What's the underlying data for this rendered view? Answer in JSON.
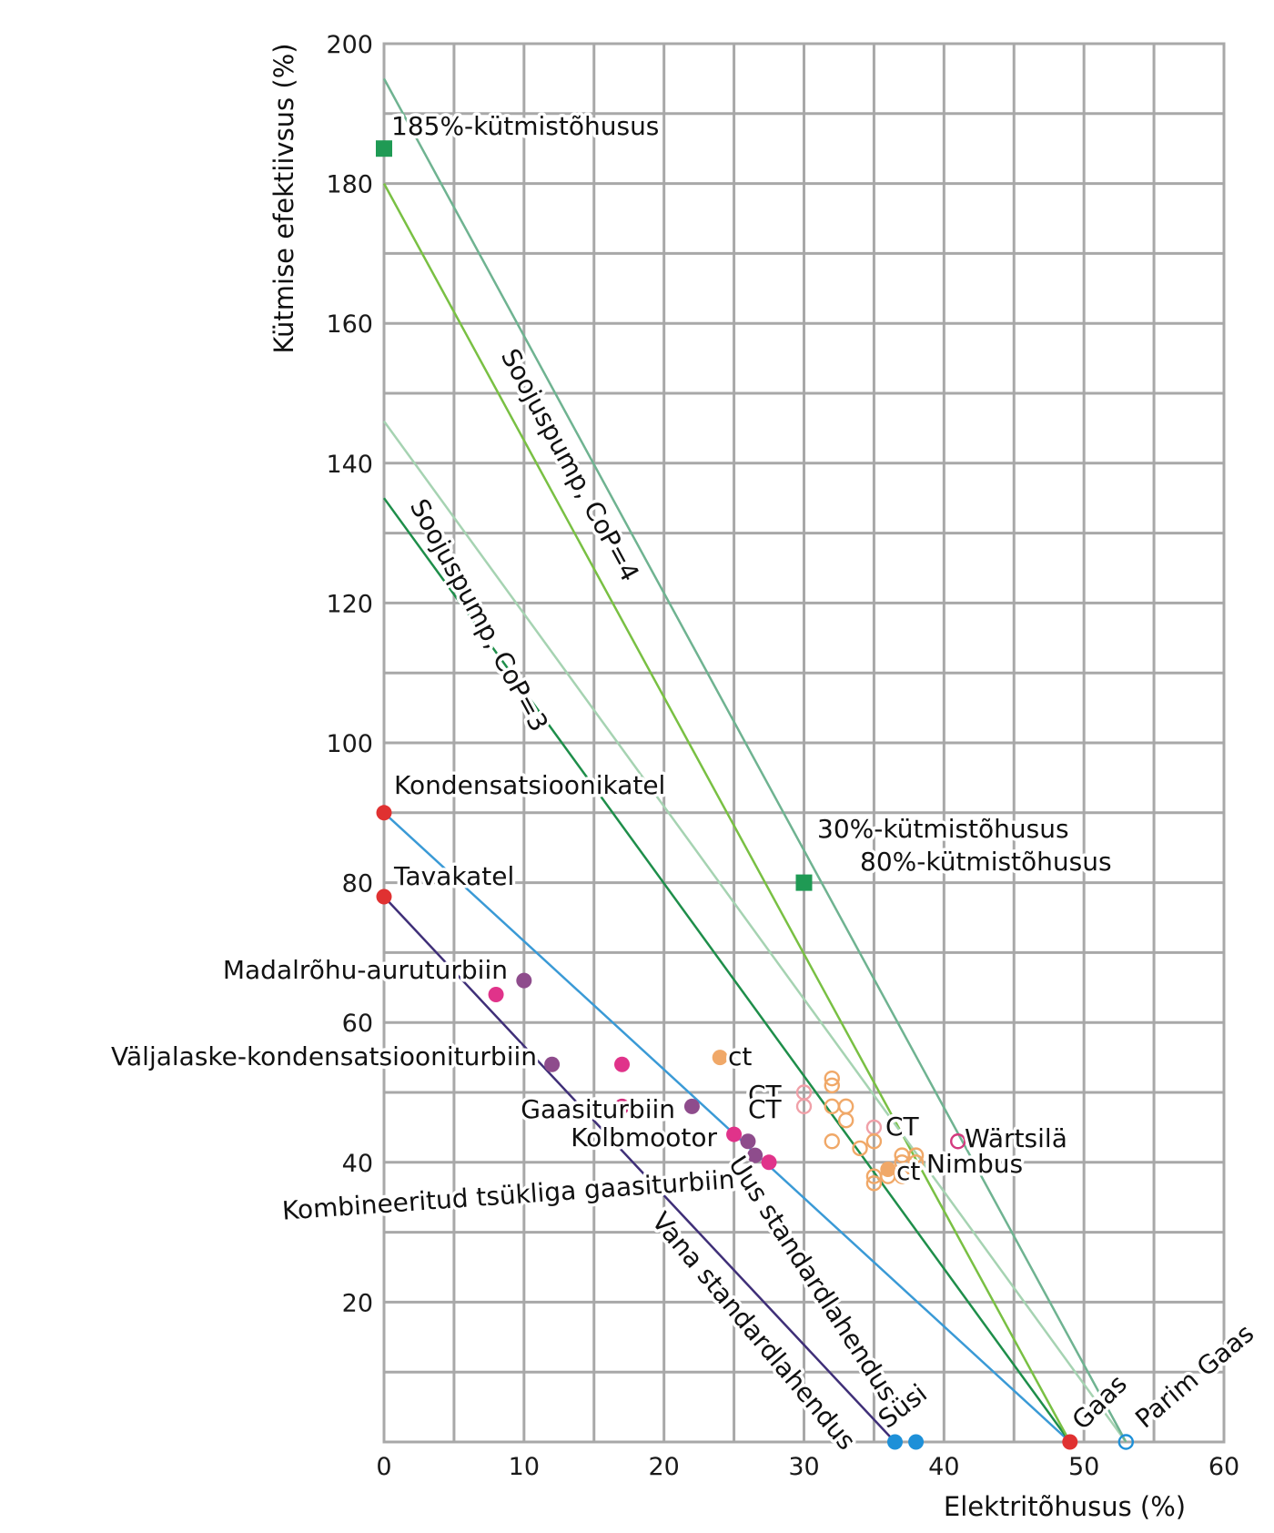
{
  "chart_data": {
    "type": "scatter",
    "title": "",
    "xlabel": "Elektritõhusus (%)",
    "ylabel": "Kütmise efektiivsus (%)",
    "xlim": [
      0,
      60
    ],
    "ylim": [
      0,
      200
    ],
    "x_ticks": [
      0,
      10,
      20,
      30,
      40,
      50,
      60
    ],
    "y_ticks": [
      20,
      40,
      60,
      80,
      100,
      120,
      140,
      160,
      180,
      200
    ],
    "x_grid_step": 5,
    "y_grid_step": 10,
    "grid": true,
    "lines": [
      {
        "id": "vana",
        "x1": 0,
        "y1": 78,
        "x2": 36.5,
        "y2": 0,
        "color": "#3f2f78",
        "label": "Vana standardlahendus"
      },
      {
        "id": "uus",
        "x1": 0,
        "y1": 90,
        "x2": 49,
        "y2": 0,
        "color": "#3a9ad6",
        "label": "Uus standardlahendus"
      },
      {
        "id": "cop3",
        "x1": 0,
        "y1": 135,
        "x2": 49,
        "y2": 0,
        "color": "#1e8e4a",
        "label": "Soojuspump, CoP=3"
      },
      {
        "id": "cop4",
        "x1": 0,
        "y1": 180,
        "x2": 49,
        "y2": 0,
        "color": "#79c043",
        "label": "Soojuspump, CoP=4"
      },
      {
        "id": "parim-a",
        "x1": 0,
        "y1": 146,
        "x2": 53,
        "y2": 0,
        "color": "#a6d3b2",
        "label": ""
      },
      {
        "id": "parim-b",
        "x1": 0,
        "y1": 195,
        "x2": 53,
        "y2": 0,
        "color": "#6fb391",
        "label": ""
      }
    ],
    "points": [
      {
        "x": 0,
        "y": 185,
        "shape": "square",
        "color": "#1f9a54",
        "filled": true,
        "label": "185%-kütmistõhusus"
      },
      {
        "x": 30,
        "y": 80,
        "shape": "square",
        "color": "#1f9a54",
        "filled": true,
        "label": ""
      },
      {
        "x": 0,
        "y": 90,
        "shape": "circle",
        "color": "#e03131",
        "filled": true,
        "label": "Kondensatsioonikatel"
      },
      {
        "x": 0,
        "y": 78,
        "shape": "circle",
        "color": "#e03131",
        "filled": true,
        "label": "Tavakatel"
      },
      {
        "x": 49,
        "y": 0,
        "shape": "circle",
        "color": "#e03131",
        "filled": true,
        "label": "Gaas"
      },
      {
        "x": 36.5,
        "y": 0,
        "shape": "circle",
        "color": "#1e90d8",
        "filled": true,
        "label": ""
      },
      {
        "x": 38,
        "y": 0,
        "shape": "circle",
        "color": "#1e90d8",
        "filled": true,
        "label": "Süsi"
      },
      {
        "x": 53,
        "y": 0,
        "shape": "circle",
        "color": "#1e90d8",
        "filled": false,
        "label": "Parim Gaas"
      },
      {
        "x": 10,
        "y": 66,
        "shape": "circle",
        "color": "#8e4c8c",
        "filled": true,
        "label": ""
      },
      {
        "x": 8,
        "y": 64,
        "shape": "circle",
        "color": "#e0338a",
        "filled": true,
        "label": ""
      },
      {
        "x": 12,
        "y": 54,
        "shape": "circle",
        "color": "#8e4c8c",
        "filled": true,
        "label": ""
      },
      {
        "x": 17,
        "y": 54,
        "shape": "circle",
        "color": "#e0338a",
        "filled": true,
        "label": ""
      },
      {
        "x": 17,
        "y": 48,
        "shape": "circle",
        "color": "#d02b7c",
        "filled": true,
        "label": ""
      },
      {
        "x": 22,
        "y": 48,
        "shape": "circle",
        "color": "#8e4c8c",
        "filled": true,
        "label": ""
      },
      {
        "x": 25,
        "y": 44,
        "shape": "circle",
        "color": "#e0338a",
        "filled": true,
        "label": ""
      },
      {
        "x": 26,
        "y": 43,
        "shape": "circle",
        "color": "#8e4c8c",
        "filled": true,
        "label": ""
      },
      {
        "x": 26.5,
        "y": 41,
        "shape": "circle",
        "color": "#8e4c8c",
        "filled": true,
        "label": ""
      },
      {
        "x": 27.5,
        "y": 40,
        "shape": "circle",
        "color": "#e0338a",
        "filled": true,
        "label": ""
      },
      {
        "x": 24,
        "y": 55,
        "shape": "circle",
        "color": "#f0a868",
        "filled": true,
        "label": "ct"
      },
      {
        "x": 30,
        "y": 50,
        "shape": "circle",
        "color": "#f0a0a8",
        "filled": false,
        "label": ""
      },
      {
        "x": 30,
        "y": 48,
        "shape": "circle",
        "color": "#f0a0a8",
        "filled": false,
        "label": ""
      },
      {
        "x": 32,
        "y": 52,
        "shape": "circle",
        "color": "#f0a868",
        "filled": false,
        "label": ""
      },
      {
        "x": 32,
        "y": 51,
        "shape": "circle",
        "color": "#f0a868",
        "filled": false,
        "label": ""
      },
      {
        "x": 32,
        "y": 48,
        "shape": "circle",
        "color": "#f0a868",
        "filled": false,
        "label": ""
      },
      {
        "x": 33,
        "y": 48,
        "shape": "circle",
        "color": "#f0a868",
        "filled": false,
        "label": ""
      },
      {
        "x": 33,
        "y": 46,
        "shape": "circle",
        "color": "#f0a868",
        "filled": false,
        "label": ""
      },
      {
        "x": 32,
        "y": 43,
        "shape": "circle",
        "color": "#f0a868",
        "filled": false,
        "label": ""
      },
      {
        "x": 34,
        "y": 42,
        "shape": "circle",
        "color": "#f0a868",
        "filled": false,
        "label": ""
      },
      {
        "x": 35,
        "y": 45,
        "shape": "circle",
        "color": "#f0a0a8",
        "filled": false,
        "label": ""
      },
      {
        "x": 35,
        "y": 43,
        "shape": "circle",
        "color": "#f0a868",
        "filled": false,
        "label": ""
      },
      {
        "x": 35,
        "y": 38,
        "shape": "circle",
        "color": "#f0a868",
        "filled": false,
        "label": ""
      },
      {
        "x": 35,
        "y": 37,
        "shape": "circle",
        "color": "#f0a868",
        "filled": false,
        "label": ""
      },
      {
        "x": 36,
        "y": 39,
        "shape": "circle",
        "color": "#f0a868",
        "filled": true,
        "label": "ct"
      },
      {
        "x": 36,
        "y": 38,
        "shape": "circle",
        "color": "#f0a868",
        "filled": false,
        "label": ""
      },
      {
        "x": 37,
        "y": 41,
        "shape": "circle",
        "color": "#f0a868",
        "filled": false,
        "label": ""
      },
      {
        "x": 37,
        "y": 40,
        "shape": "circle",
        "color": "#f0a868",
        "filled": false,
        "label": ""
      },
      {
        "x": 37,
        "y": 38,
        "shape": "circle",
        "color": "#f0a868",
        "filled": false,
        "label": ""
      },
      {
        "x": 38,
        "y": 41,
        "shape": "circle",
        "color": "#f0a868",
        "filled": false,
        "label": ""
      },
      {
        "x": 38,
        "y": 40,
        "shape": "circle",
        "color": "#f0a868",
        "filled": false,
        "label": ""
      },
      {
        "x": 41,
        "y": 43,
        "shape": "circle",
        "color": "#d33a7e",
        "filled": false,
        "label": "Wärtsilä"
      }
    ],
    "annotations": [
      "30%-kütmistõhusus",
      "80%-kütmistõhusus",
      "Madalrõhu-auruturbiin",
      "Väljalaske-kondensatsiooniturbiin",
      "Gaasiturbiin",
      "Kolbmootor",
      "Kombineeritud tsükliga gaasiturbiin",
      "CT",
      "CT",
      "CT",
      "Nimbus"
    ]
  }
}
